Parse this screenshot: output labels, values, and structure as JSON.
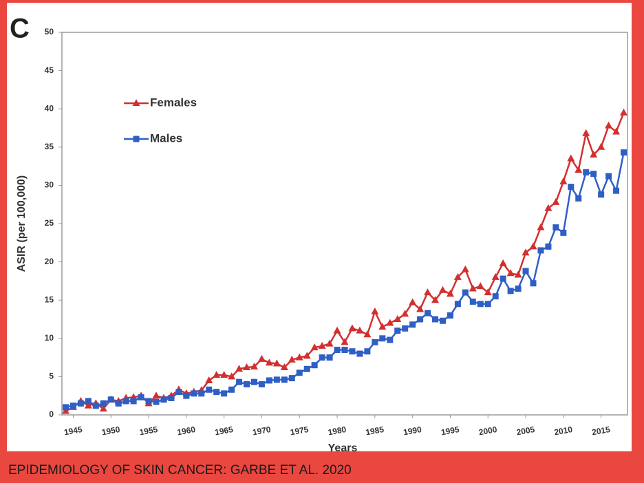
{
  "chart_data": {
    "type": "line",
    "panel_label": "C",
    "ylabel": "ASIR (per 100,000)",
    "xlabel": "Years",
    "caption": "EPIDEMIOLOGY OF SKIN CANCER: GARBE ET AL. 2020",
    "x": [
      1944,
      1945,
      1946,
      1947,
      1948,
      1949,
      1950,
      1951,
      1952,
      1953,
      1954,
      1955,
      1956,
      1957,
      1958,
      1959,
      1960,
      1961,
      1962,
      1963,
      1964,
      1965,
      1966,
      1967,
      1968,
      1969,
      1970,
      1971,
      1972,
      1973,
      1974,
      1975,
      1976,
      1977,
      1978,
      1979,
      1980,
      1981,
      1982,
      1983,
      1984,
      1985,
      1986,
      1987,
      1988,
      1989,
      1990,
      1991,
      1992,
      1993,
      1994,
      1995,
      1996,
      1997,
      1998,
      1999,
      2000,
      2001,
      2002,
      2003,
      2004,
      2005,
      2006,
      2007,
      2008,
      2009,
      2010,
      2011,
      2012,
      2013,
      2014,
      2015,
      2016,
      2017,
      2018
    ],
    "series": [
      {
        "name": "Females",
        "color": "#d32f2f",
        "marker": "triangle",
        "values": [
          0.5,
          1.0,
          1.8,
          1.2,
          1.5,
          0.8,
          2.0,
          1.8,
          2.2,
          2.3,
          2.5,
          1.5,
          2.5,
          2.2,
          2.5,
          3.3,
          2.8,
          3.0,
          3.2,
          4.5,
          5.2,
          5.2,
          5.0,
          6.0,
          6.2,
          6.3,
          7.3,
          6.8,
          6.7,
          6.2,
          7.2,
          7.5,
          7.7,
          8.8,
          9.0,
          9.3,
          11.0,
          9.5,
          11.3,
          11.0,
          10.5,
          13.5,
          11.5,
          12.0,
          12.5,
          13.2,
          14.7,
          13.8,
          16.0,
          15.0,
          16.3,
          15.8,
          18.0,
          19.0,
          16.5,
          16.8,
          16.0,
          18.0,
          19.8,
          18.5,
          18.3,
          21.2,
          22.0,
          24.5,
          27.0,
          27.8,
          30.5,
          33.5,
          32.0,
          36.8,
          34.0,
          35.0,
          37.8,
          37.0,
          39.5
        ]
      },
      {
        "name": "Males",
        "color": "#2f5fc4",
        "marker": "square",
        "values": [
          1.0,
          1.2,
          1.5,
          1.8,
          1.2,
          1.5,
          2.0,
          1.5,
          1.8,
          1.8,
          2.3,
          1.8,
          1.7,
          2.0,
          2.2,
          3.0,
          2.5,
          2.8,
          2.8,
          3.3,
          3.0,
          2.8,
          3.3,
          4.3,
          4.0,
          4.3,
          4.0,
          4.5,
          4.6,
          4.6,
          4.8,
          5.5,
          6.0,
          6.5,
          7.5,
          7.5,
          8.5,
          8.5,
          8.3,
          8.0,
          8.3,
          9.5,
          10.0,
          9.8,
          11.0,
          11.3,
          11.8,
          12.5,
          13.3,
          12.5,
          12.3,
          13.0,
          14.5,
          16.0,
          14.8,
          14.5,
          14.5,
          15.5,
          17.8,
          16.2,
          16.5,
          18.8,
          17.2,
          21.5,
          22.0,
          24.5,
          23.8,
          29.8,
          28.3,
          31.7,
          31.5,
          28.8,
          31.2,
          29.3,
          34.3
        ]
      }
    ],
    "xlim": [
      1943.5,
      2018.5
    ],
    "xticks": [
      1945,
      1950,
      1955,
      1960,
      1965,
      1970,
      1975,
      1980,
      1985,
      1990,
      1995,
      2000,
      2005,
      2010,
      2015
    ],
    "ylim": [
      0,
      50
    ],
    "yticks": [
      0,
      5,
      10,
      15,
      20,
      25,
      30,
      35,
      40,
      45,
      50
    ],
    "grid": false,
    "legend": "upper left"
  }
}
